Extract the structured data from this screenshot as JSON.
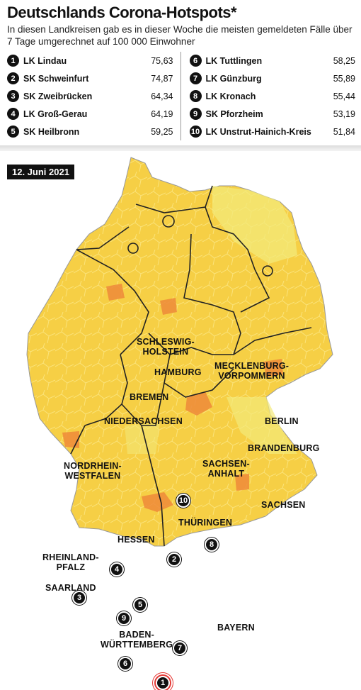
{
  "header": {
    "title": "Deutschlands Corona-Hotspots*",
    "subtitle": "In diesen Landkreisen gab es in dieser Woche die meisten gemeldeten Fälle über 7 Tage umgerechnet auf 100 000 Einwohner"
  },
  "ranking": [
    {
      "rank": "1",
      "name": "LK Lindau",
      "value": "75,63"
    },
    {
      "rank": "2",
      "name": "SK Schweinfurt",
      "value": "74,87"
    },
    {
      "rank": "3",
      "name": "SK Zweibrücken",
      "value": "64,34"
    },
    {
      "rank": "4",
      "name": "LK Groß-Gerau",
      "value": "64,19"
    },
    {
      "rank": "5",
      "name": "SK Heilbronn",
      "value": "59,25"
    },
    {
      "rank": "6",
      "name": "LK Tuttlingen",
      "value": "58,25"
    },
    {
      "rank": "7",
      "name": "LK Günzburg",
      "value": "55,89"
    },
    {
      "rank": "8",
      "name": "LK Kronach",
      "value": "55,44"
    },
    {
      "rank": "9",
      "name": "SK Pforzheim",
      "value": "53,19"
    },
    {
      "rank": "10",
      "name": "LK Unstrut-Hainich-Kreis",
      "value": "51,84"
    }
  ],
  "map": {
    "date": "12. Juni 2021",
    "colors": {
      "light": "#f3ea7a",
      "mid": "#f6c63c",
      "dark": "#f0a83a",
      "hot": "#ee8a3a",
      "border": "#222"
    },
    "states": [
      {
        "line1": "SCHLESWIG-",
        "line2": "HOLSTEIN"
      },
      {
        "line1": "HAMBURG",
        "line2": ""
      },
      {
        "line1": "MECKLENBURG-",
        "line2": "VORPOMMERN"
      },
      {
        "line1": "BREMEN",
        "line2": ""
      },
      {
        "line1": "NIEDERSACHSEN",
        "line2": ""
      },
      {
        "line1": "BERLIN",
        "line2": ""
      },
      {
        "line1": "BRANDENBURG",
        "line2": ""
      },
      {
        "line1": "NORDRHEIN-",
        "line2": "WESTFALEN"
      },
      {
        "line1": "SACHSEN-",
        "line2": "ANHALT"
      },
      {
        "line1": "SACHSEN",
        "line2": ""
      },
      {
        "line1": "THÜRINGEN",
        "line2": ""
      },
      {
        "line1": "HESSEN",
        "line2": ""
      },
      {
        "line1": "RHEINLAND-",
        "line2": "PFALZ"
      },
      {
        "line1": "SAARLAND",
        "line2": ""
      },
      {
        "line1": "BADEN-",
        "line2": "WÜRTTEMBERG"
      },
      {
        "line1": "BAYERN",
        "line2": ""
      }
    ],
    "markers": [
      "1",
      "2",
      "3",
      "4",
      "5",
      "6",
      "7",
      "8",
      "9",
      "10"
    ]
  }
}
